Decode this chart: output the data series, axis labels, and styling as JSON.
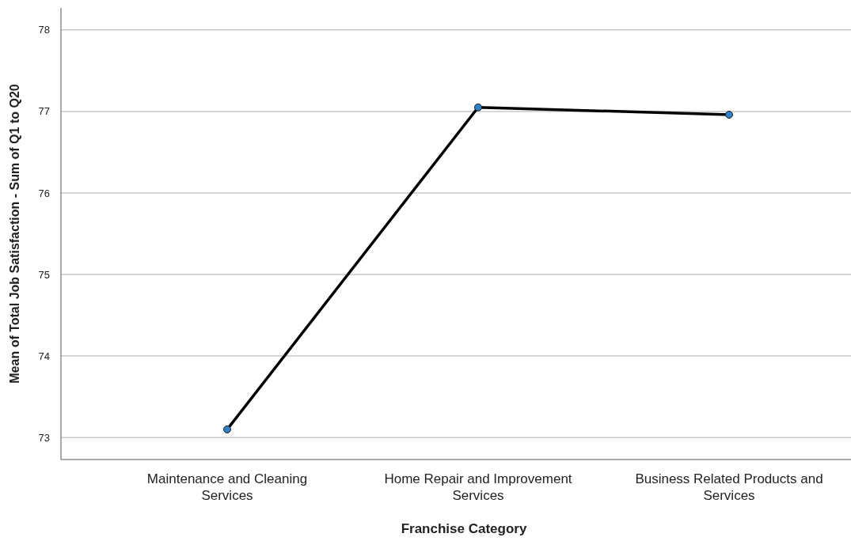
{
  "chart_data": {
    "type": "line",
    "xlabel": "Franchise Category",
    "ylabel": "Mean of Total Job Satisfaction - Sum of Q1 to Q20",
    "categories": [
      "Maintenance and Cleaning Services",
      "Home Repair and Improvement Services",
      "Business Related Products and Services"
    ],
    "series": [
      {
        "color": "#000000",
        "values": [
          73.1,
          77.05,
          76.96
        ]
      }
    ],
    "ylim": [
      72.73,
      78.27
    ],
    "yticks": [
      73,
      74,
      75,
      76,
      77,
      78
    ],
    "grid": "y",
    "marker": "circle",
    "line_style": "solid"
  }
}
